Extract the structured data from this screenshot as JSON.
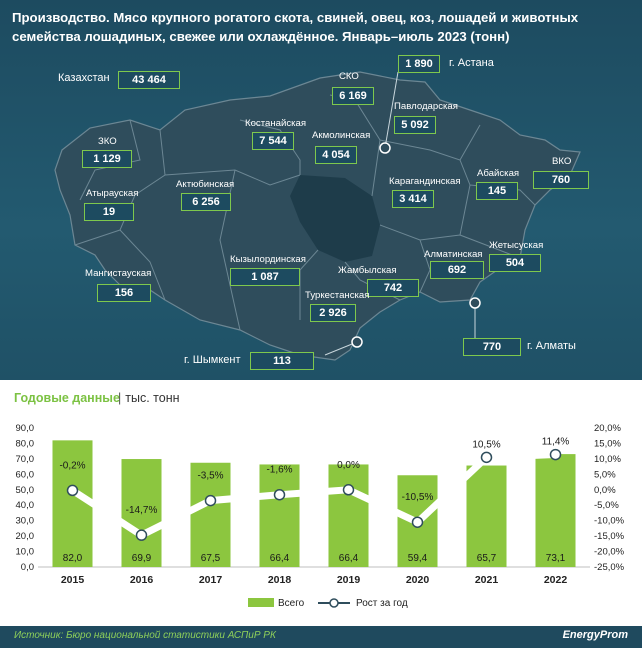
{
  "title": {
    "line1": "Производство. Мясо крупного рогатого скота, свиней, овец, коз, лошадей и животных",
    "line2": "семейства лошадиных, свежее или охлаждённое. Январь–июль 2023 (тонн)"
  },
  "map": {
    "kazakhstan": {
      "label": "Казахстан",
      "value": "43 464"
    },
    "astana": {
      "label": "г. Астана",
      "value": "1 890"
    },
    "almaty": {
      "label": "г. Алматы",
      "value": "770"
    },
    "shymkent": {
      "label": "г. Шымкент",
      "value": "113"
    },
    "regions": [
      {
        "label": "СКО",
        "value": "6 169"
      },
      {
        "label": "Павлодарская",
        "value": "5 092"
      },
      {
        "label": "Костанайская",
        "value": "7 544"
      },
      {
        "label": "Акмолинская",
        "value": "4 054"
      },
      {
        "label": "ЗКО",
        "value": "1 129"
      },
      {
        "label": "Атырауская",
        "value": "19"
      },
      {
        "label": "Актюбинская",
        "value": "6 256"
      },
      {
        "label": "Карагандинская",
        "value": "3 414"
      },
      {
        "label": "Абайская",
        "value": "145"
      },
      {
        "label": "ВКО",
        "value": "760"
      },
      {
        "label": "Жетысуская",
        "value": "504"
      },
      {
        "label": "Алматинская",
        "value": "692"
      },
      {
        "label": "Жамбылская",
        "value": "742"
      },
      {
        "label": "Кызылординская",
        "value": "1 087"
      },
      {
        "label": "Мангистауская",
        "value": "156"
      },
      {
        "label": "Туркестанская",
        "value": "2 926"
      }
    ]
  },
  "section": {
    "title": "Годовые данные",
    "unit": "тыс. тонн"
  },
  "colors": {
    "bar": "#8cc63f",
    "line": "#ffffff",
    "accent": "#7cc243",
    "background": "#1f4a5e"
  },
  "chart_data": {
    "type": "bar",
    "categories": [
      "2015",
      "2016",
      "2017",
      "2018",
      "2019",
      "2020",
      "2021",
      "2022"
    ],
    "series": [
      {
        "name": "Всего",
        "type": "bar",
        "axis": "left",
        "values": [
          82.0,
          69.9,
          67.5,
          66.4,
          66.4,
          59.4,
          65.7,
          73.1
        ],
        "labels": [
          "82,0",
          "69,9",
          "67,5",
          "66,4",
          "66,4",
          "59,4",
          "65,7",
          "73,1"
        ]
      },
      {
        "name": "Рост за год",
        "type": "line",
        "axis": "right",
        "values": [
          -0.2,
          -14.7,
          -3.5,
          -1.6,
          0.0,
          -10.5,
          10.5,
          11.4
        ],
        "labels": [
          "-0,2%",
          "-14,7%",
          "-3,5%",
          "-1,6%",
          "0,0%",
          "-10,5%",
          "10,5%",
          "11,4%"
        ]
      }
    ],
    "ylim": [
      0,
      90
    ],
    "y2lim": [
      -25,
      20
    ],
    "yticks": [
      "0,0",
      "10,0",
      "20,0",
      "30,0",
      "40,0",
      "50,0",
      "60,0",
      "70,0",
      "80,0",
      "90,0"
    ],
    "y2ticks": [
      "-25,0%",
      "-20,0%",
      "-15,0%",
      "-10,0%",
      "-5,0%",
      "0,0%",
      "5,0%",
      "10,0%",
      "15,0%",
      "20,0%"
    ],
    "legend": "bottom",
    "grid": false
  },
  "footer": {
    "source": "Источник: Бюро национальной статистики АСПиР РК",
    "brand": "EnergyProm"
  }
}
